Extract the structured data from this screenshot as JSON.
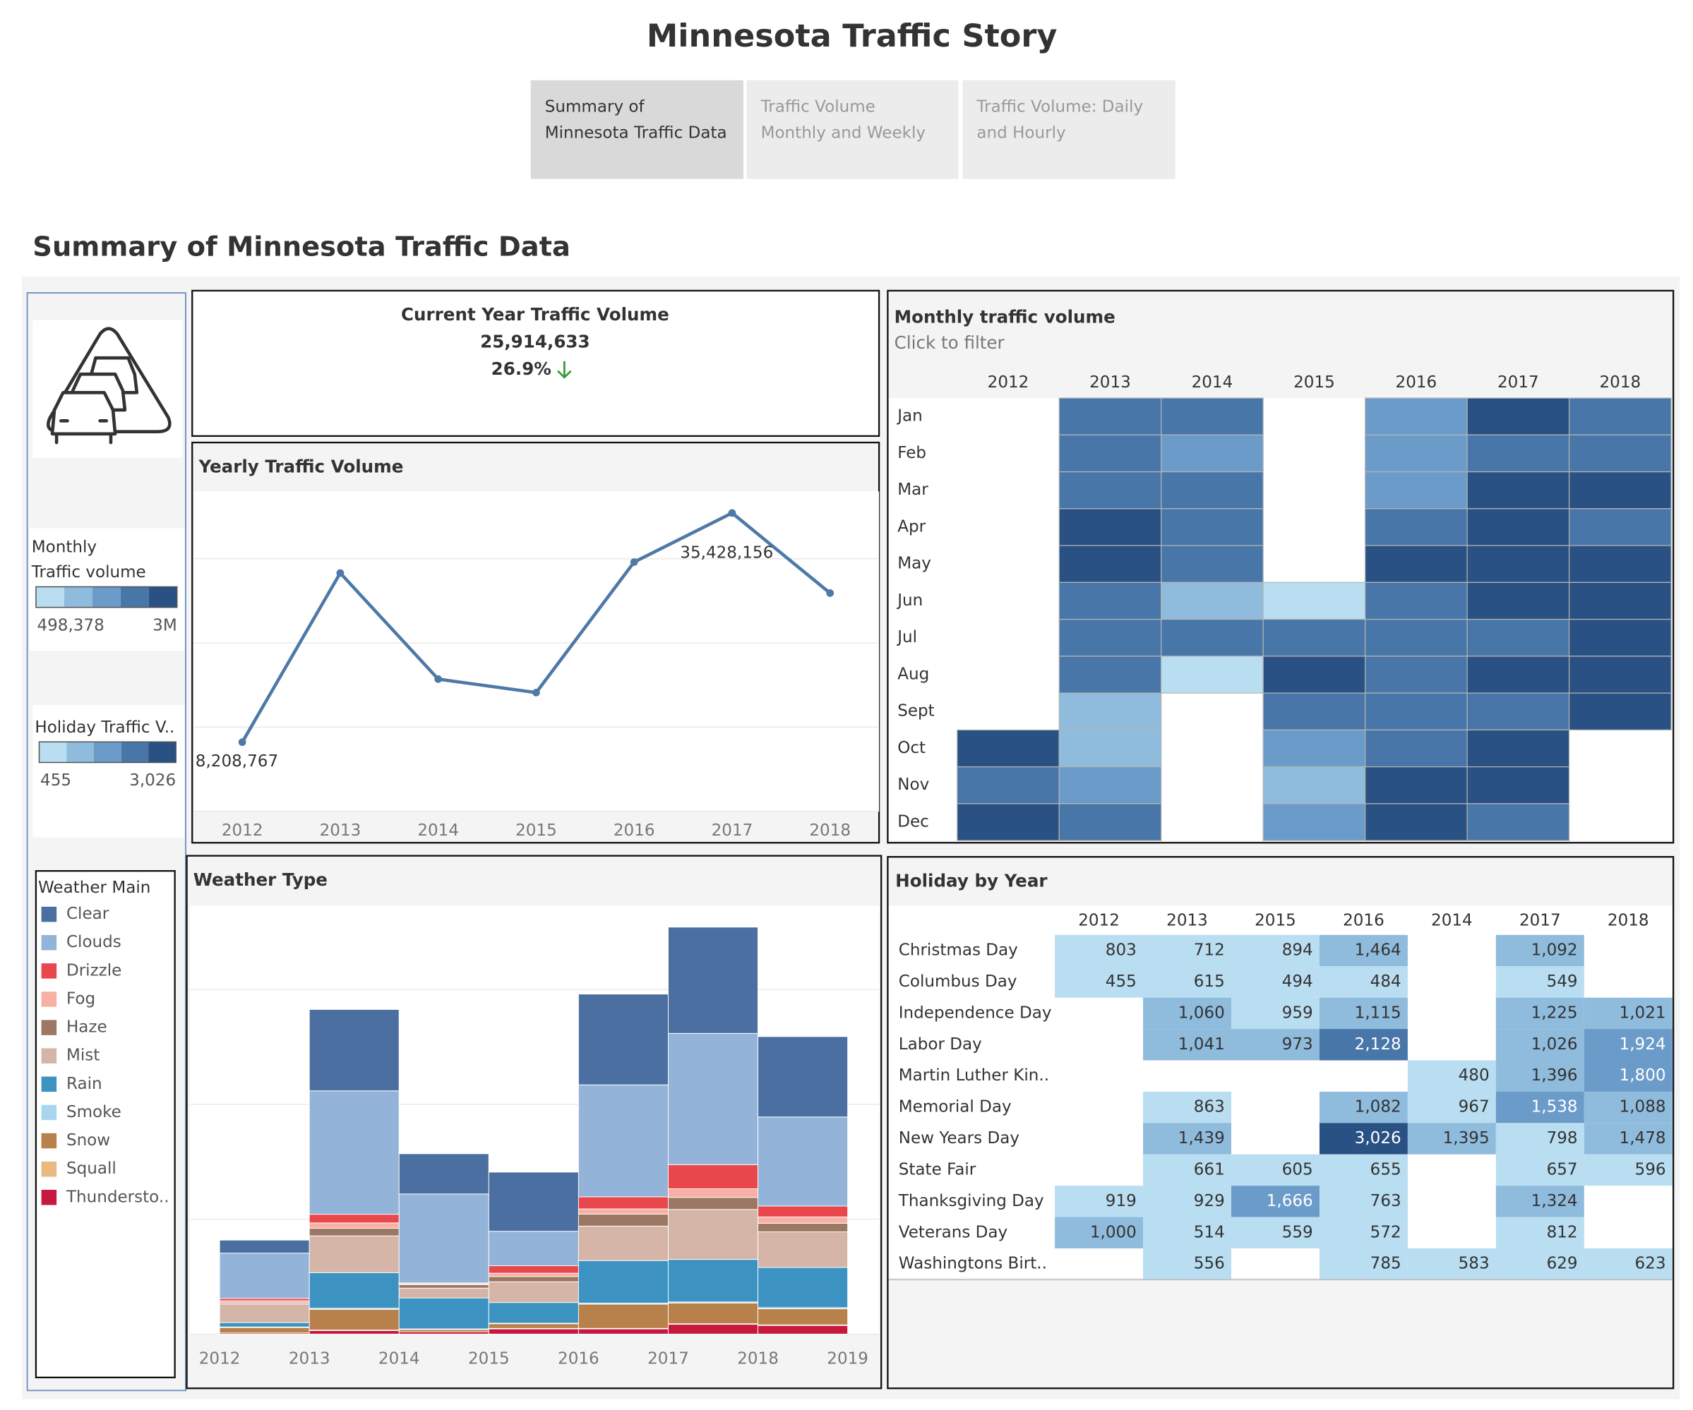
{
  "title": "Minnesota Traffic Story",
  "tabs": [
    [
      "Summary of",
      "Minnesota Traffic Data"
    ],
    [
      "Traffic Volume",
      "Monthly and Weekly"
    ],
    [
      "Traffic Volume: Daily",
      "and Hourly"
    ]
  ],
  "dashboard_title": "Summary of Minnesota Traffic Data",
  "kpi": {
    "title": "Current Year Traffic Volume",
    "value": "25,914,633",
    "change": "26.9%"
  },
  "chart_data": [
    {
      "type": "line",
      "title": "Yearly Traffic Volume",
      "x": [
        2012,
        2013,
        2014,
        2015,
        2016,
        2017,
        2018
      ],
      "values": [
        8208767,
        28300000,
        15700000,
        14100000,
        29600000,
        35428156,
        25914633
      ],
      "value_labels": [
        "8,208,767",
        null,
        null,
        null,
        null,
        "35,428,156",
        null
      ],
      "color": "#4e79a7",
      "xlim": [
        2011.5,
        2018.5
      ],
      "xticks": [
        2012,
        2013,
        2014,
        2015,
        2016,
        2017,
        2018
      ],
      "ylim": [
        0,
        38000000
      ],
      "yticks": [
        0,
        10000000,
        20000000,
        30000000
      ],
      "grid": true
    },
    {
      "type": "heatmap",
      "title": "Monthly traffic volume",
      "subtitle": "Click to filter",
      "columns": [
        2012,
        2013,
        2014,
        2015,
        2016,
        2017,
        2018
      ],
      "rows": [
        "Jan",
        "Feb",
        "Mar",
        "Apr",
        "May",
        "Jun",
        "Jul",
        "Aug",
        "Sept",
        "Oct",
        "Nov",
        "Dec"
      ],
      "values": [
        [
          null,
          2200000,
          2200000,
          null,
          1700000,
          2700000,
          2200000
        ],
        [
          null,
          2200000,
          1700000,
          null,
          1700000,
          2200000,
          2200000
        ],
        [
          null,
          2200000,
          2200000,
          null,
          1700000,
          2700000,
          2700000
        ],
        [
          null,
          2700000,
          2200000,
          null,
          2200000,
          2700000,
          2200000
        ],
        [
          null,
          2700000,
          2200000,
          null,
          2700000,
          2700000,
          2700000
        ],
        [
          null,
          2200000,
          1200000,
          700000,
          2200000,
          2700000,
          2700000
        ],
        [
          null,
          2200000,
          2200000,
          2200000,
          2200000,
          2200000,
          2700000
        ],
        [
          null,
          2200000,
          700000,
          2700000,
          2200000,
          2700000,
          2700000
        ],
        [
          null,
          1200000,
          null,
          2200000,
          2200000,
          2200000,
          2700000
        ],
        [
          2700000,
          1200000,
          null,
          1700000,
          2200000,
          2700000,
          null
        ],
        [
          2200000,
          1700000,
          null,
          1200000,
          2700000,
          2700000,
          null
        ],
        [
          2700000,
          2200000,
          null,
          1700000,
          2700000,
          2200000,
          null
        ]
      ],
      "legend": {
        "title_lines": [
          "Monthly",
          "Traffic volume"
        ],
        "range": [
          {
            "value": 498378,
            "label": "498,378"
          },
          {
            "value": 3000000,
            "label": "3M"
          }
        ],
        "colors": [
          "#b9ddf1",
          "#8fbbdd",
          "#6a9bc9",
          "#4876a8",
          "#2a5183"
        ]
      }
    },
    {
      "type": "table-heatmap",
      "title": "Holiday by Year",
      "columns": [
        2012,
        2013,
        2015,
        2016,
        2014,
        2017,
        2018
      ],
      "rows": [
        "Christmas Day",
        "Columbus Day",
        "Independence Day",
        "Labor Day",
        "Martin Luther Kin..",
        "Memorial Day",
        "New Years Day",
        "State Fair",
        "Thanksgiving Day",
        "Veterans Day",
        "Washingtons Birt.."
      ],
      "values": [
        [
          803,
          712,
          894,
          1464,
          null,
          1092,
          null
        ],
        [
          455,
          615,
          494,
          484,
          null,
          549,
          null
        ],
        [
          null,
          1060,
          959,
          1115,
          null,
          1225,
          1021
        ],
        [
          null,
          1041,
          973,
          2128,
          null,
          1026,
          1924
        ],
        [
          null,
          null,
          null,
          null,
          480,
          1396,
          1800
        ],
        [
          null,
          863,
          null,
          1082,
          967,
          1538,
          1088
        ],
        [
          null,
          1439,
          null,
          3026,
          1395,
          798,
          1478
        ],
        [
          null,
          661,
          605,
          655,
          null,
          657,
          596
        ],
        [
          919,
          929,
          1666,
          763,
          null,
          1324,
          null
        ],
        [
          1000,
          514,
          559,
          572,
          null,
          812,
          null
        ],
        [
          null,
          556,
          null,
          785,
          583,
          629,
          623
        ]
      ],
      "value_labels": [
        [
          "803",
          "712",
          "894",
          "1,464",
          null,
          "1,092",
          null
        ],
        [
          "455",
          "615",
          "494",
          "484",
          null,
          "549",
          null
        ],
        [
          null,
          "1,060",
          "959",
          "1,115",
          null,
          "1,225",
          "1,021"
        ],
        [
          null,
          "1,041",
          "973",
          "2,128",
          null,
          "1,026",
          "1,924"
        ],
        [
          null,
          null,
          null,
          null,
          "480",
          "1,396",
          "1,800"
        ],
        [
          null,
          "863",
          null,
          "1,082",
          "967",
          "1,538",
          "1,088"
        ],
        [
          null,
          "1,439",
          null,
          "3,026",
          "1,395",
          "798",
          "1,478"
        ],
        [
          null,
          "661",
          "605",
          "655",
          null,
          "657",
          "596"
        ],
        [
          "919",
          "929",
          "1,666",
          "763",
          null,
          "1,324",
          null
        ],
        [
          "1,000",
          "514",
          "559",
          "572",
          null,
          "812",
          null
        ],
        [
          null,
          "556",
          null,
          "785",
          "583",
          "629",
          "623"
        ]
      ],
      "legend": {
        "title_lines": [
          "Holiday Traffic V.."
        ],
        "range": [
          {
            "value": 455,
            "label": "455"
          },
          {
            "value": 3026,
            "label": "3,026"
          }
        ],
        "colors": [
          "#b9ddf1",
          "#8fbbdd",
          "#6a9bc9",
          "#4876a8",
          "#2a5183"
        ]
      }
    },
    {
      "type": "stacked-histogram",
      "title": "Weather Type",
      "legend_title": "Weather Main",
      "bins": [
        2012,
        2013,
        2014,
        2015,
        2016,
        2017,
        2018,
        2019
      ],
      "xlim": [
        2011.67,
        2019.35
      ],
      "xticks": [
        2012,
        2013,
        2014,
        2015,
        2016,
        2017,
        2018,
        2019
      ],
      "ylim": [
        0,
        37300000
      ],
      "yticks": [
        0,
        10000000,
        20000000,
        30000000
      ],
      "grid": true,
      "series": [
        {
          "name": "Clear",
          "color": "#4a6fa0",
          "values": [
            1130000,
            7080000,
            3500000,
            5150000,
            7900000,
            9250000,
            7000000
          ]
        },
        {
          "name": "Clouds",
          "color": "#93b4d8",
          "values": [
            3950000,
            10750000,
            7750000,
            3000000,
            9750000,
            11430000,
            7750000
          ]
        },
        {
          "name": "Drizzle",
          "color": "#e8474c",
          "values": [
            200000,
            750000,
            50000,
            650000,
            1050000,
            2100000,
            950000
          ]
        },
        {
          "name": "Fog",
          "color": "#f7b0a3",
          "values": [
            200000,
            470000,
            100000,
            300000,
            450000,
            750000,
            550000
          ]
        },
        {
          "name": "Haze",
          "color": "#9c7763",
          "values": [
            100000,
            660000,
            300000,
            450000,
            1050000,
            1050000,
            750000
          ]
        },
        {
          "name": "Mist",
          "color": "#d5b5a7",
          "values": [
            1600000,
            3200000,
            850000,
            1800000,
            3000000,
            4350000,
            3100000
          ]
        },
        {
          "name": "Rain",
          "color": "#3c93c2",
          "values": [
            380000,
            3100000,
            2700000,
            1800000,
            3700000,
            3700000,
            3500000
          ]
        },
        {
          "name": "Smoke",
          "color": "#a8d6f0",
          "values": [
            50000,
            100000,
            50000,
            50000,
            100000,
            100000,
            100000
          ]
        },
        {
          "name": "Snow",
          "color": "#b8804a",
          "values": [
            470000,
            1800000,
            200000,
            400000,
            2100000,
            1800000,
            1400000
          ]
        },
        {
          "name": "Squall",
          "color": "#e9b980",
          "values": [
            0,
            50000,
            0,
            50000,
            50000,
            50000,
            50000
          ]
        },
        {
          "name": "Thundersto..",
          "color": "#c8183d",
          "values": [
            100000,
            300000,
            200000,
            450000,
            450000,
            850000,
            750000
          ]
        }
      ]
    }
  ]
}
